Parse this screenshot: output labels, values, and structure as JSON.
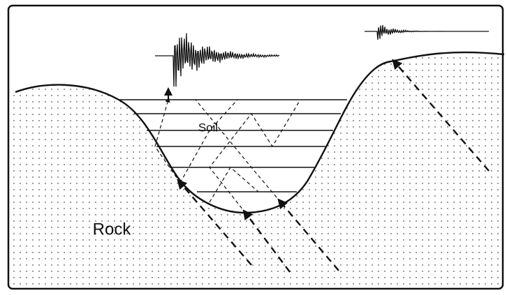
{
  "labels": {
    "soil": "Soil",
    "rock": "Rock"
  }
}
